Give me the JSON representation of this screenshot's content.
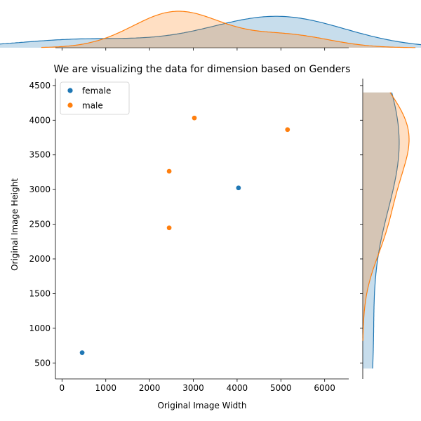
{
  "chart_data": {
    "type": "scatter",
    "title": "We are visualizing the data for dimension based on Genders",
    "xlabel": "Original Image Width",
    "ylabel": "Original Image Height",
    "xlim": [
      -150,
      6550
    ],
    "ylim": [
      270,
      4600
    ],
    "xticks": [
      0,
      1000,
      2000,
      3000,
      4000,
      5000,
      6000
    ],
    "yticks": [
      500,
      1000,
      1500,
      2000,
      2500,
      3000,
      3500,
      4000,
      4500
    ],
    "legend": {
      "placement": "top-left"
    },
    "marginals": "kde",
    "series": [
      {
        "name": "female",
        "color": "#1f77b4",
        "points": [
          [
            460,
            648
          ],
          [
            4032,
            3024
          ],
          [
            5152,
            3864
          ],
          [
            5152,
            3864
          ],
          [
            5152,
            3864
          ]
        ]
      },
      {
        "name": "male",
        "color": "#ff7f0e",
        "points": [
          [
            2448,
            2448
          ],
          [
            2448,
            3264
          ],
          [
            3024,
            4032
          ],
          [
            5152,
            3864
          ]
        ]
      }
    ]
  }
}
